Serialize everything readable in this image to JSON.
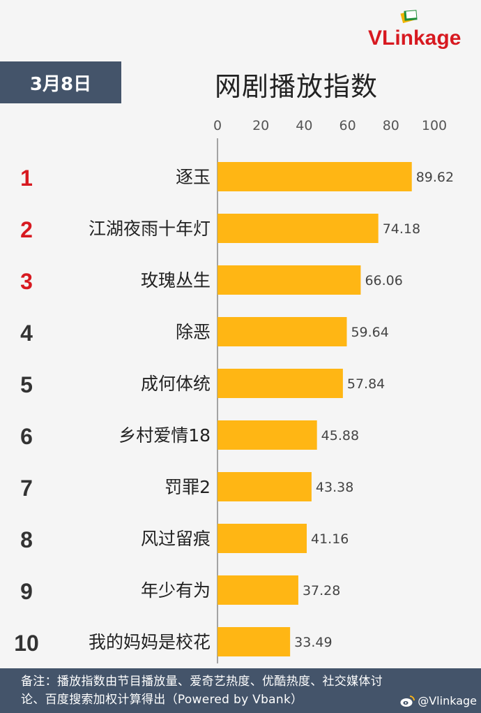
{
  "brand": {
    "logo_text": "VLinkage",
    "colors": {
      "v": "#d71920",
      "text": "#d71920",
      "icon_green": "#1f8f3a",
      "icon_yellow": "#f0b400"
    }
  },
  "header": {
    "date": "3月8日",
    "title": "网剧播放指数"
  },
  "chart_data": {
    "type": "bar",
    "orientation": "horizontal",
    "title": "网剧播放指数",
    "xlim": [
      0,
      100
    ],
    "x_ticks": [
      "0",
      "20",
      "40",
      "60",
      "80",
      "100"
    ],
    "grid": false,
    "bar_color": "#ffb614",
    "rank_colors": {
      "top3": "#d71920",
      "rest": "#333333"
    },
    "ranks": [
      "1",
      "2",
      "3",
      "4",
      "5",
      "6",
      "7",
      "8",
      "9",
      "10"
    ],
    "categories": [
      "逐玉",
      "江湖夜雨十年灯",
      "玫瑰丛生",
      "除恶",
      "成何体统",
      "乡村爱情18",
      "罚罪2",
      "风过留痕",
      "年少有为",
      "我的妈妈是校花"
    ],
    "values": [
      89.62,
      74.18,
      66.06,
      59.64,
      57.84,
      45.88,
      43.38,
      41.16,
      37.28,
      33.49
    ],
    "value_labels": [
      "89.62",
      "74.18",
      "66.06",
      "59.64",
      "57.84",
      "45.88",
      "43.38",
      "41.16",
      "37.28",
      "33.49"
    ]
  },
  "footer": {
    "note": "备注：播放指数由节目播放量、爱奇艺热度、优酷热度、社交媒体讨论、百度搜索加权计算得出（Powered by Vbank）",
    "watermark": "@Vlinkage",
    "bg_color": "#44546a"
  }
}
